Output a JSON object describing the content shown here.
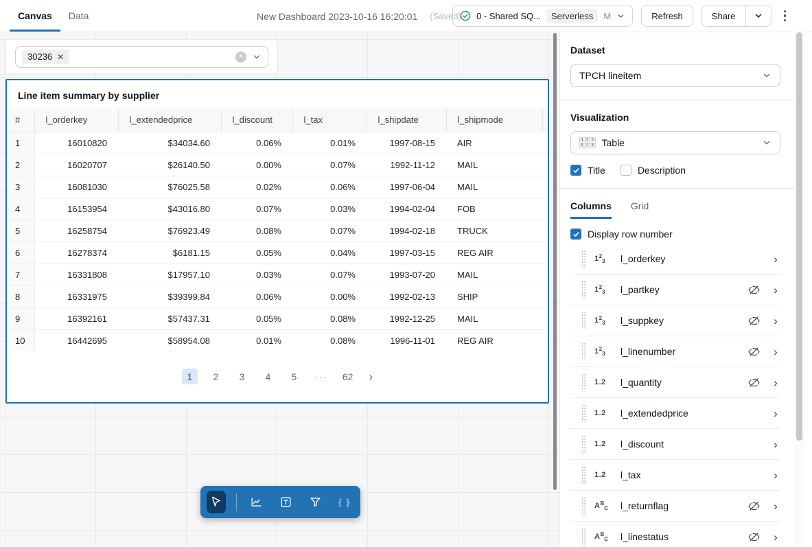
{
  "topbar": {
    "tab_canvas": "Canvas",
    "tab_data": "Data",
    "title": "New Dashboard 2023-10-16 16:20:01",
    "saved_label": "(Saved)",
    "warehouse": {
      "name": "0 - Shared SQ...",
      "badge": "Serverless",
      "size": "M"
    },
    "refresh_label": "Refresh",
    "share_label": "Share"
  },
  "canvas": {
    "filter_chip_value": "30236",
    "widget": {
      "title": "Line item summary by supplier",
      "table": {
        "columns": [
          "#",
          "l_orderkey",
          "l_extendedprice",
          "l_discount",
          "l_tax",
          "l_shipdate",
          "l_shipmode"
        ],
        "rows": [
          [
            "1",
            "16010820",
            "$34034.60",
            "0.06%",
            "0.01%",
            "1997-08-15",
            "AIR"
          ],
          [
            "2",
            "16020707",
            "$26140.50",
            "0.00%",
            "0.07%",
            "1992-11-12",
            "MAIL"
          ],
          [
            "3",
            "16081030",
            "$76025.58",
            "0.02%",
            "0.06%",
            "1997-06-04",
            "MAIL"
          ],
          [
            "4",
            "16153954",
            "$43016.80",
            "0.07%",
            "0.03%",
            "1994-02-04",
            "FOB"
          ],
          [
            "5",
            "16258754",
            "$76923.49",
            "0.08%",
            "0.07%",
            "1994-02-18",
            "TRUCK"
          ],
          [
            "6",
            "16278374",
            "$6181.15",
            "0.05%",
            "0.04%",
            "1997-03-15",
            "REG AIR"
          ],
          [
            "7",
            "16331808",
            "$17957.10",
            "0.03%",
            "0.07%",
            "1993-07-20",
            "MAIL"
          ],
          [
            "8",
            "16331975",
            "$39399.84",
            "0.06%",
            "0.00%",
            "1992-02-13",
            "SHIP"
          ],
          [
            "9",
            "16392161",
            "$57437.31",
            "0.05%",
            "0.08%",
            "1992-12-25",
            "MAIL"
          ],
          [
            "10",
            "16442695",
            "$58954.08",
            "0.01%",
            "0.08%",
            "1996-11-01",
            "REG AIR"
          ]
        ]
      },
      "pagination": {
        "pages": [
          "1",
          "2",
          "3",
          "4",
          "5",
          "···",
          "62"
        ],
        "active_page": "1"
      }
    },
    "toolbar_tools": [
      "select-cursor",
      "add-visualization",
      "add-textbox",
      "add-filter",
      "add-code"
    ]
  },
  "sidebar": {
    "dataset_label": "Dataset",
    "dataset_value": "TPCH lineitem",
    "visualization_label": "Visualization",
    "visualization_value": "Table",
    "title_checkbox_label": "Title",
    "description_checkbox_label": "Description",
    "tab_columns": "Columns",
    "tab_grid": "Grid",
    "display_row_number_label": "Display row number",
    "columns": [
      {
        "name": "l_orderkey",
        "type": "integer",
        "hidden": false
      },
      {
        "name": "l_partkey",
        "type": "integer",
        "hidden": true
      },
      {
        "name": "l_suppkey",
        "type": "integer",
        "hidden": true
      },
      {
        "name": "l_linenumber",
        "type": "integer",
        "hidden": true
      },
      {
        "name": "l_quantity",
        "type": "decimal",
        "hidden": true
      },
      {
        "name": "l_extendedprice",
        "type": "decimal",
        "hidden": false
      },
      {
        "name": "l_discount",
        "type": "decimal",
        "hidden": false
      },
      {
        "name": "l_tax",
        "type": "decimal",
        "hidden": false
      },
      {
        "name": "l_returnflag",
        "type": "string",
        "hidden": true
      },
      {
        "name": "l_linestatus",
        "type": "string",
        "hidden": true
      }
    ]
  },
  "colors": {
    "accent": "#2272b4",
    "selection_border": "#2272b4",
    "active_page_bg": "#d9e7f6",
    "toolbar_bg": "#2272b4",
    "toolbar_selected_bg": "#0e3a63",
    "success_green": "#2aa15c"
  }
}
